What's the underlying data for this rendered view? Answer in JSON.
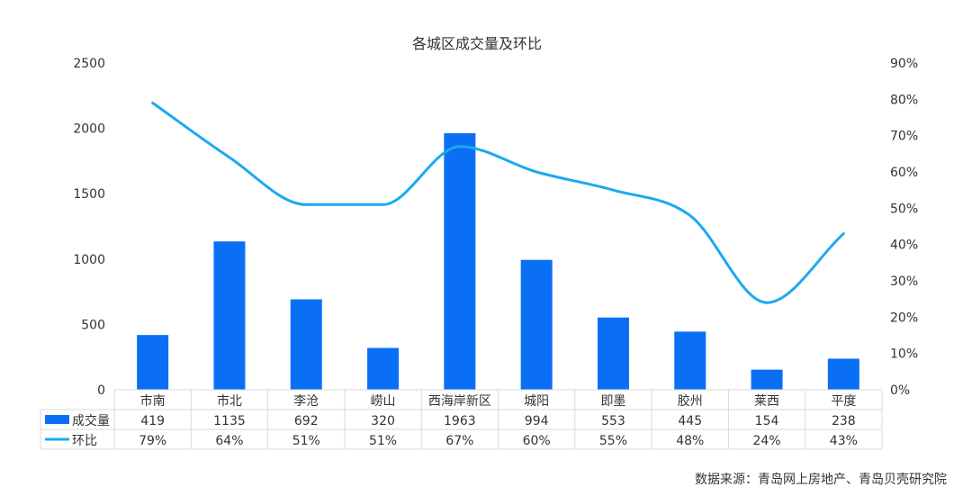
{
  "chart_data": {
    "type": "bar",
    "title": "各城区成交量及环比",
    "categories": [
      "市南",
      "市北",
      "李沧",
      "崂山",
      "西海岸新区",
      "城阳",
      "即墨",
      "胶州",
      "莱西",
      "平度"
    ],
    "series": [
      {
        "name": "成交量",
        "type": "bar",
        "axis": "left",
        "color": "#0A6FF5",
        "values": [
          419,
          1135,
          692,
          320,
          1963,
          994,
          553,
          445,
          154,
          238
        ],
        "labels": [
          "419",
          "1135",
          "692",
          "320",
          "1963",
          "994",
          "553",
          "445",
          "154",
          "238"
        ]
      },
      {
        "name": "环比",
        "type": "line",
        "axis": "right",
        "smooth": true,
        "color": "#1AAAF0",
        "values": [
          79,
          64,
          51,
          51,
          67,
          60,
          55,
          48,
          24,
          43
        ],
        "labels": [
          "79%",
          "64%",
          "51%",
          "51%",
          "67%",
          "60%",
          "55%",
          "48%",
          "24%",
          "43%"
        ]
      }
    ],
    "y_left": {
      "ylim": [
        0,
        2500
      ],
      "ticks": [
        "0",
        "500",
        "1000",
        "1500",
        "2000",
        "2500"
      ]
    },
    "y_right": {
      "ylim": [
        0,
        90
      ],
      "ticks": [
        "0%",
        "10%",
        "20%",
        "30%",
        "40%",
        "50%",
        "60%",
        "70%",
        "80%",
        "90%"
      ]
    },
    "grid": false,
    "legend": "data-table"
  },
  "source_text": "数据来源：青岛网上房地产、青岛贝壳研究院"
}
